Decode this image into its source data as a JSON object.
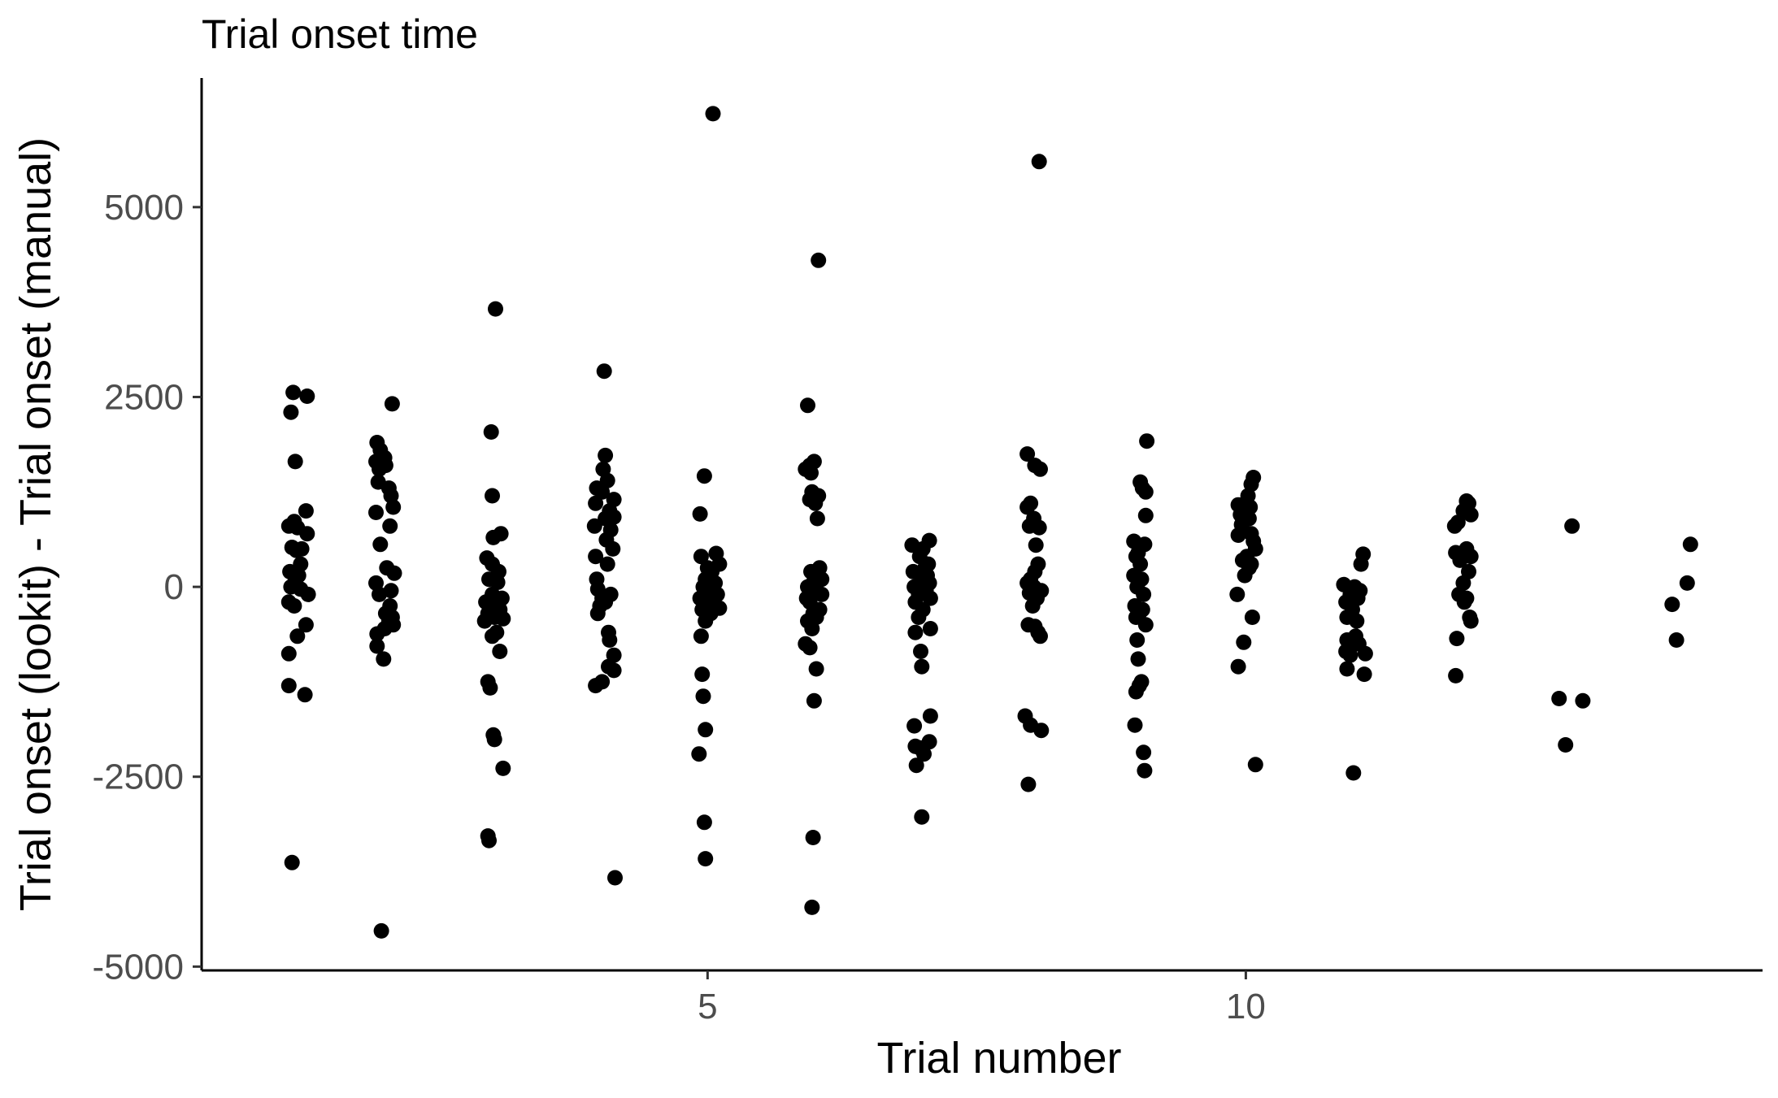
{
  "chart_data": {
    "type": "scatter",
    "title": "Trial onset time",
    "xlabel": "Trial number",
    "ylabel": "Trial onset (lookit) - Trial onset (manual)",
    "xlim": [
      0.3,
      14.8
    ],
    "ylim": [
      -5050,
      6700
    ],
    "x_ticks": [
      5,
      10
    ],
    "y_ticks": [
      -5000,
      -2500,
      0,
      2500,
      5000
    ],
    "grid": false,
    "legend": "none",
    "point_color": "#000000",
    "points": [
      {
        "x": 1.15,
        "y": 2560
      },
      {
        "x": 1.28,
        "y": 2510
      },
      {
        "x": 1.13,
        "y": 2300
      },
      {
        "x": 1.17,
        "y": 1650
      },
      {
        "x": 1.27,
        "y": 1000
      },
      {
        "x": 1.11,
        "y": 800
      },
      {
        "x": 1.16,
        "y": 860
      },
      {
        "x": 1.19,
        "y": 780
      },
      {
        "x": 1.28,
        "y": 700
      },
      {
        "x": 1.14,
        "y": 520
      },
      {
        "x": 1.23,
        "y": 500
      },
      {
        "x": 1.18,
        "y": 480
      },
      {
        "x": 1.22,
        "y": 300
      },
      {
        "x": 1.12,
        "y": 200
      },
      {
        "x": 1.2,
        "y": 150
      },
      {
        "x": 1.17,
        "y": 100
      },
      {
        "x": 1.13,
        "y": 0
      },
      {
        "x": 1.22,
        "y": -30
      },
      {
        "x": 1.29,
        "y": -100
      },
      {
        "x": 1.11,
        "y": -200
      },
      {
        "x": 1.16,
        "y": -250
      },
      {
        "x": 1.27,
        "y": -500
      },
      {
        "x": 1.19,
        "y": -650
      },
      {
        "x": 1.11,
        "y": -880
      },
      {
        "x": 1.11,
        "y": -1300
      },
      {
        "x": 1.26,
        "y": -1420
      },
      {
        "x": 1.14,
        "y": -3630
      },
      {
        "x": 2.07,
        "y": 2410
      },
      {
        "x": 1.93,
        "y": 1900
      },
      {
        "x": 1.96,
        "y": 1800
      },
      {
        "x": 2.0,
        "y": 1700
      },
      {
        "x": 1.92,
        "y": 1650
      },
      {
        "x": 1.95,
        "y": 1550
      },
      {
        "x": 2.01,
        "y": 1600
      },
      {
        "x": 1.94,
        "y": 1380
      },
      {
        "x": 2.04,
        "y": 1300
      },
      {
        "x": 2.06,
        "y": 1200
      },
      {
        "x": 2.08,
        "y": 1050
      },
      {
        "x": 1.92,
        "y": 980
      },
      {
        "x": 2.05,
        "y": 800
      },
      {
        "x": 1.96,
        "y": 560
      },
      {
        "x": 2.02,
        "y": 250
      },
      {
        "x": 2.09,
        "y": 180
      },
      {
        "x": 1.92,
        "y": 50
      },
      {
        "x": 2.06,
        "y": -50
      },
      {
        "x": 1.95,
        "y": -100
      },
      {
        "x": 2.05,
        "y": -250
      },
      {
        "x": 2.01,
        "y": -350
      },
      {
        "x": 2.07,
        "y": -400
      },
      {
        "x": 2.04,
        "y": -450
      },
      {
        "x": 2.08,
        "y": -500
      },
      {
        "x": 2.0,
        "y": -550
      },
      {
        "x": 1.93,
        "y": -620
      },
      {
        "x": 1.93,
        "y": -780
      },
      {
        "x": 1.99,
        "y": -950
      },
      {
        "x": 1.97,
        "y": -4530
      },
      {
        "x": 3.03,
        "y": 3660
      },
      {
        "x": 2.99,
        "y": 2040
      },
      {
        "x": 3.0,
        "y": 1200
      },
      {
        "x": 3.08,
        "y": 700
      },
      {
        "x": 3.01,
        "y": 650
      },
      {
        "x": 2.95,
        "y": 380
      },
      {
        "x": 3.0,
        "y": 300
      },
      {
        "x": 3.06,
        "y": 200
      },
      {
        "x": 2.97,
        "y": 100
      },
      {
        "x": 3.05,
        "y": 60
      },
      {
        "x": 3.0,
        "y": -100
      },
      {
        "x": 3.09,
        "y": -150
      },
      {
        "x": 2.94,
        "y": -200
      },
      {
        "x": 3.03,
        "y": -250
      },
      {
        "x": 3.07,
        "y": -300
      },
      {
        "x": 2.96,
        "y": -350
      },
      {
        "x": 3.02,
        "y": -400
      },
      {
        "x": 3.1,
        "y": -420
      },
      {
        "x": 2.93,
        "y": -450
      },
      {
        "x": 3.04,
        "y": -600
      },
      {
        "x": 3.0,
        "y": -650
      },
      {
        "x": 3.07,
        "y": -850
      },
      {
        "x": 2.96,
        "y": -1250
      },
      {
        "x": 2.98,
        "y": -1330
      },
      {
        "x": 3.01,
        "y": -1950
      },
      {
        "x": 3.02,
        "y": -2010
      },
      {
        "x": 3.1,
        "y": -2390
      },
      {
        "x": 2.96,
        "y": -3280
      },
      {
        "x": 2.97,
        "y": -3340
      },
      {
        "x": 4.04,
        "y": 2840
      },
      {
        "x": 4.05,
        "y": 1730
      },
      {
        "x": 4.03,
        "y": 1550
      },
      {
        "x": 4.07,
        "y": 1400
      },
      {
        "x": 3.97,
        "y": 1300
      },
      {
        "x": 4.02,
        "y": 1250
      },
      {
        "x": 4.13,
        "y": 1150
      },
      {
        "x": 3.96,
        "y": 1100
      },
      {
        "x": 4.09,
        "y": 1000
      },
      {
        "x": 4.05,
        "y": 900
      },
      {
        "x": 4.13,
        "y": 920
      },
      {
        "x": 3.95,
        "y": 800
      },
      {
        "x": 4.1,
        "y": 750
      },
      {
        "x": 4.06,
        "y": 620
      },
      {
        "x": 4.12,
        "y": 500
      },
      {
        "x": 3.96,
        "y": 400
      },
      {
        "x": 4.07,
        "y": 300
      },
      {
        "x": 3.97,
        "y": 100
      },
      {
        "x": 3.98,
        "y": -30
      },
      {
        "x": 4.1,
        "y": -100
      },
      {
        "x": 4.02,
        "y": -150
      },
      {
        "x": 4.05,
        "y": -200
      },
      {
        "x": 4.0,
        "y": -250
      },
      {
        "x": 3.98,
        "y": -350
      },
      {
        "x": 4.08,
        "y": -600
      },
      {
        "x": 4.09,
        "y": -700
      },
      {
        "x": 4.13,
        "y": -900
      },
      {
        "x": 4.08,
        "y": -1050
      },
      {
        "x": 4.13,
        "y": -1100
      },
      {
        "x": 4.02,
        "y": -1250
      },
      {
        "x": 3.96,
        "y": -1300
      },
      {
        "x": 4.14,
        "y": -3830
      },
      {
        "x": 5.05,
        "y": 6230
      },
      {
        "x": 4.97,
        "y": 1460
      },
      {
        "x": 4.93,
        "y": 960
      },
      {
        "x": 5.08,
        "y": 440
      },
      {
        "x": 4.94,
        "y": 400
      },
      {
        "x": 5.11,
        "y": 300
      },
      {
        "x": 5.0,
        "y": 250
      },
      {
        "x": 5.04,
        "y": 200
      },
      {
        "x": 4.98,
        "y": 100
      },
      {
        "x": 5.03,
        "y": 80
      },
      {
        "x": 5.07,
        "y": 50
      },
      {
        "x": 4.96,
        "y": 0
      },
      {
        "x": 5.02,
        "y": -50
      },
      {
        "x": 5.09,
        "y": -100
      },
      {
        "x": 4.93,
        "y": -150
      },
      {
        "x": 5.05,
        "y": -200
      },
      {
        "x": 5.0,
        "y": -250
      },
      {
        "x": 5.11,
        "y": -280
      },
      {
        "x": 4.95,
        "y": -300
      },
      {
        "x": 5.03,
        "y": -350
      },
      {
        "x": 4.98,
        "y": -450
      },
      {
        "x": 4.94,
        "y": -650
      },
      {
        "x": 4.95,
        "y": -1150
      },
      {
        "x": 4.96,
        "y": -1440
      },
      {
        "x": 4.98,
        "y": -1880
      },
      {
        "x": 4.92,
        "y": -2200
      },
      {
        "x": 4.97,
        "y": -3100
      },
      {
        "x": 4.98,
        "y": -3580
      },
      {
        "x": 6.03,
        "y": 4300
      },
      {
        "x": 5.93,
        "y": 2390
      },
      {
        "x": 5.91,
        "y": 1550
      },
      {
        "x": 5.95,
        "y": 1600
      },
      {
        "x": 5.99,
        "y": 1650
      },
      {
        "x": 5.96,
        "y": 1500
      },
      {
        "x": 5.97,
        "y": 1250
      },
      {
        "x": 6.03,
        "y": 1200
      },
      {
        "x": 5.95,
        "y": 1150
      },
      {
        "x": 6.0,
        "y": 1100
      },
      {
        "x": 6.02,
        "y": 900
      },
      {
        "x": 5.96,
        "y": 200
      },
      {
        "x": 6.04,
        "y": 250
      },
      {
        "x": 6.02,
        "y": 150
      },
      {
        "x": 6.06,
        "y": 100
      },
      {
        "x": 5.98,
        "y": 50
      },
      {
        "x": 5.93,
        "y": 0
      },
      {
        "x": 6.0,
        "y": -50
      },
      {
        "x": 6.06,
        "y": -100
      },
      {
        "x": 5.92,
        "y": -150
      },
      {
        "x": 5.95,
        "y": -200
      },
      {
        "x": 6.04,
        "y": -300
      },
      {
        "x": 5.98,
        "y": -350
      },
      {
        "x": 6.01,
        "y": -400
      },
      {
        "x": 5.93,
        "y": -450
      },
      {
        "x": 5.97,
        "y": -550
      },
      {
        "x": 5.91,
        "y": -750
      },
      {
        "x": 5.95,
        "y": -800
      },
      {
        "x": 6.01,
        "y": -1080
      },
      {
        "x": 5.99,
        "y": -1500
      },
      {
        "x": 5.98,
        "y": -3300
      },
      {
        "x": 5.97,
        "y": -4220
      },
      {
        "x": 7.06,
        "y": 610
      },
      {
        "x": 6.9,
        "y": 550
      },
      {
        "x": 7.0,
        "y": 500
      },
      {
        "x": 6.97,
        "y": 400
      },
      {
        "x": 7.05,
        "y": 300
      },
      {
        "x": 7.02,
        "y": 250
      },
      {
        "x": 6.91,
        "y": 200
      },
      {
        "x": 7.04,
        "y": 150
      },
      {
        "x": 6.99,
        "y": 100
      },
      {
        "x": 7.06,
        "y": 50
      },
      {
        "x": 6.92,
        "y": 0
      },
      {
        "x": 7.03,
        "y": -50
      },
      {
        "x": 6.96,
        "y": -100
      },
      {
        "x": 7.07,
        "y": -150
      },
      {
        "x": 6.93,
        "y": -200
      },
      {
        "x": 7.0,
        "y": -300
      },
      {
        "x": 6.96,
        "y": -400
      },
      {
        "x": 7.07,
        "y": -550
      },
      {
        "x": 6.93,
        "y": -600
      },
      {
        "x": 6.98,
        "y": -850
      },
      {
        "x": 6.99,
        "y": -1050
      },
      {
        "x": 7.07,
        "y": -1700
      },
      {
        "x": 6.92,
        "y": -1830
      },
      {
        "x": 7.06,
        "y": -2040
      },
      {
        "x": 6.93,
        "y": -2100
      },
      {
        "x": 6.97,
        "y": -2120
      },
      {
        "x": 7.01,
        "y": -2200
      },
      {
        "x": 6.94,
        "y": -2350
      },
      {
        "x": 6.99,
        "y": -3030
      },
      {
        "x": 8.08,
        "y": 5600
      },
      {
        "x": 7.97,
        "y": 1750
      },
      {
        "x": 8.04,
        "y": 1600
      },
      {
        "x": 8.09,
        "y": 1550
      },
      {
        "x": 8.0,
        "y": 1100
      },
      {
        "x": 7.97,
        "y": 1050
      },
      {
        "x": 8.03,
        "y": 900
      },
      {
        "x": 7.99,
        "y": 800
      },
      {
        "x": 8.08,
        "y": 780
      },
      {
        "x": 8.05,
        "y": 550
      },
      {
        "x": 8.07,
        "y": 300
      },
      {
        "x": 8.04,
        "y": 200
      },
      {
        "x": 8.0,
        "y": 100
      },
      {
        "x": 7.97,
        "y": 50
      },
      {
        "x": 8.03,
        "y": 0
      },
      {
        "x": 8.1,
        "y": -50
      },
      {
        "x": 7.99,
        "y": -80
      },
      {
        "x": 8.06,
        "y": -150
      },
      {
        "x": 8.02,
        "y": -250
      },
      {
        "x": 7.98,
        "y": -500
      },
      {
        "x": 8.04,
        "y": -520
      },
      {
        "x": 8.07,
        "y": -600
      },
      {
        "x": 8.09,
        "y": -650
      },
      {
        "x": 7.95,
        "y": -1700
      },
      {
        "x": 8.0,
        "y": -1820
      },
      {
        "x": 8.1,
        "y": -1890
      },
      {
        "x": 7.98,
        "y": -2600
      },
      {
        "x": 9.08,
        "y": 1920
      },
      {
        "x": 9.02,
        "y": 1380
      },
      {
        "x": 9.04,
        "y": 1300
      },
      {
        "x": 9.07,
        "y": 1250
      },
      {
        "x": 9.07,
        "y": 940
      },
      {
        "x": 8.96,
        "y": 600
      },
      {
        "x": 9.06,
        "y": 560
      },
      {
        "x": 9.0,
        "y": 450
      },
      {
        "x": 8.98,
        "y": 400
      },
      {
        "x": 9.02,
        "y": 300
      },
      {
        "x": 8.96,
        "y": 150
      },
      {
        "x": 9.03,
        "y": 100
      },
      {
        "x": 8.99,
        "y": 0
      },
      {
        "x": 9.05,
        "y": -100
      },
      {
        "x": 8.97,
        "y": -250
      },
      {
        "x": 9.04,
        "y": -300
      },
      {
        "x": 9.01,
        "y": -350
      },
      {
        "x": 8.98,
        "y": -400
      },
      {
        "x": 9.07,
        "y": -500
      },
      {
        "x": 8.99,
        "y": -700
      },
      {
        "x": 9.0,
        "y": -950
      },
      {
        "x": 9.03,
        "y": -1250
      },
      {
        "x": 9.01,
        "y": -1300
      },
      {
        "x": 8.98,
        "y": -1380
      },
      {
        "x": 8.97,
        "y": -1820
      },
      {
        "x": 9.05,
        "y": -2180
      },
      {
        "x": 9.06,
        "y": -2420
      },
      {
        "x": 10.07,
        "y": 1440
      },
      {
        "x": 10.05,
        "y": 1350
      },
      {
        "x": 10.02,
        "y": 1200
      },
      {
        "x": 9.93,
        "y": 1080
      },
      {
        "x": 10.04,
        "y": 1050
      },
      {
        "x": 9.99,
        "y": 1000
      },
      {
        "x": 9.95,
        "y": 950
      },
      {
        "x": 10.03,
        "y": 900
      },
      {
        "x": 9.96,
        "y": 820
      },
      {
        "x": 10.05,
        "y": 700
      },
      {
        "x": 9.93,
        "y": 680
      },
      {
        "x": 10.07,
        "y": 600
      },
      {
        "x": 10.09,
        "y": 500
      },
      {
        "x": 10.01,
        "y": 400
      },
      {
        "x": 9.97,
        "y": 350
      },
      {
        "x": 10.05,
        "y": 300
      },
      {
        "x": 10.03,
        "y": 250
      },
      {
        "x": 9.99,
        "y": 150
      },
      {
        "x": 9.92,
        "y": -100
      },
      {
        "x": 10.06,
        "y": -400
      },
      {
        "x": 9.98,
        "y": -730
      },
      {
        "x": 9.93,
        "y": -1050
      },
      {
        "x": 10.09,
        "y": -2340
      },
      {
        "x": 11.09,
        "y": 430
      },
      {
        "x": 11.07,
        "y": 300
      },
      {
        "x": 10.91,
        "y": 30
      },
      {
        "x": 11.01,
        "y": 0
      },
      {
        "x": 11.06,
        "y": -50
      },
      {
        "x": 10.97,
        "y": -100
      },
      {
        "x": 11.04,
        "y": -150
      },
      {
        "x": 10.93,
        "y": -200
      },
      {
        "x": 10.99,
        "y": -300
      },
      {
        "x": 10.94,
        "y": -400
      },
      {
        "x": 11.03,
        "y": -450
      },
      {
        "x": 11.02,
        "y": -650
      },
      {
        "x": 10.94,
        "y": -700
      },
      {
        "x": 11.05,
        "y": -750
      },
      {
        "x": 10.93,
        "y": -850
      },
      {
        "x": 11.11,
        "y": -880
      },
      {
        "x": 10.97,
        "y": -900
      },
      {
        "x": 10.94,
        "y": -1080
      },
      {
        "x": 11.1,
        "y": -1150
      },
      {
        "x": 11.0,
        "y": -2450
      },
      {
        "x": 12.05,
        "y": 1130
      },
      {
        "x": 12.07,
        "y": 1100
      },
      {
        "x": 12.02,
        "y": 1000
      },
      {
        "x": 12.09,
        "y": 950
      },
      {
        "x": 11.97,
        "y": 850
      },
      {
        "x": 11.94,
        "y": 800
      },
      {
        "x": 12.05,
        "y": 500
      },
      {
        "x": 11.95,
        "y": 450
      },
      {
        "x": 12.09,
        "y": 400
      },
      {
        "x": 11.99,
        "y": 350
      },
      {
        "x": 12.07,
        "y": 200
      },
      {
        "x": 12.02,
        "y": 50
      },
      {
        "x": 11.98,
        "y": -100
      },
      {
        "x": 12.05,
        "y": -150
      },
      {
        "x": 12.03,
        "y": -200
      },
      {
        "x": 12.08,
        "y": -400
      },
      {
        "x": 12.09,
        "y": -450
      },
      {
        "x": 11.96,
        "y": -680
      },
      {
        "x": 11.95,
        "y": -1170
      },
      {
        "x": 13.03,
        "y": 800
      },
      {
        "x": 12.91,
        "y": -1470
      },
      {
        "x": 13.13,
        "y": -1500
      },
      {
        "x": 12.97,
        "y": -2080
      },
      {
        "x": 14.13,
        "y": 560
      },
      {
        "x": 14.1,
        "y": 50
      },
      {
        "x": 13.96,
        "y": -230
      },
      {
        "x": 14.0,
        "y": -700
      }
    ]
  }
}
